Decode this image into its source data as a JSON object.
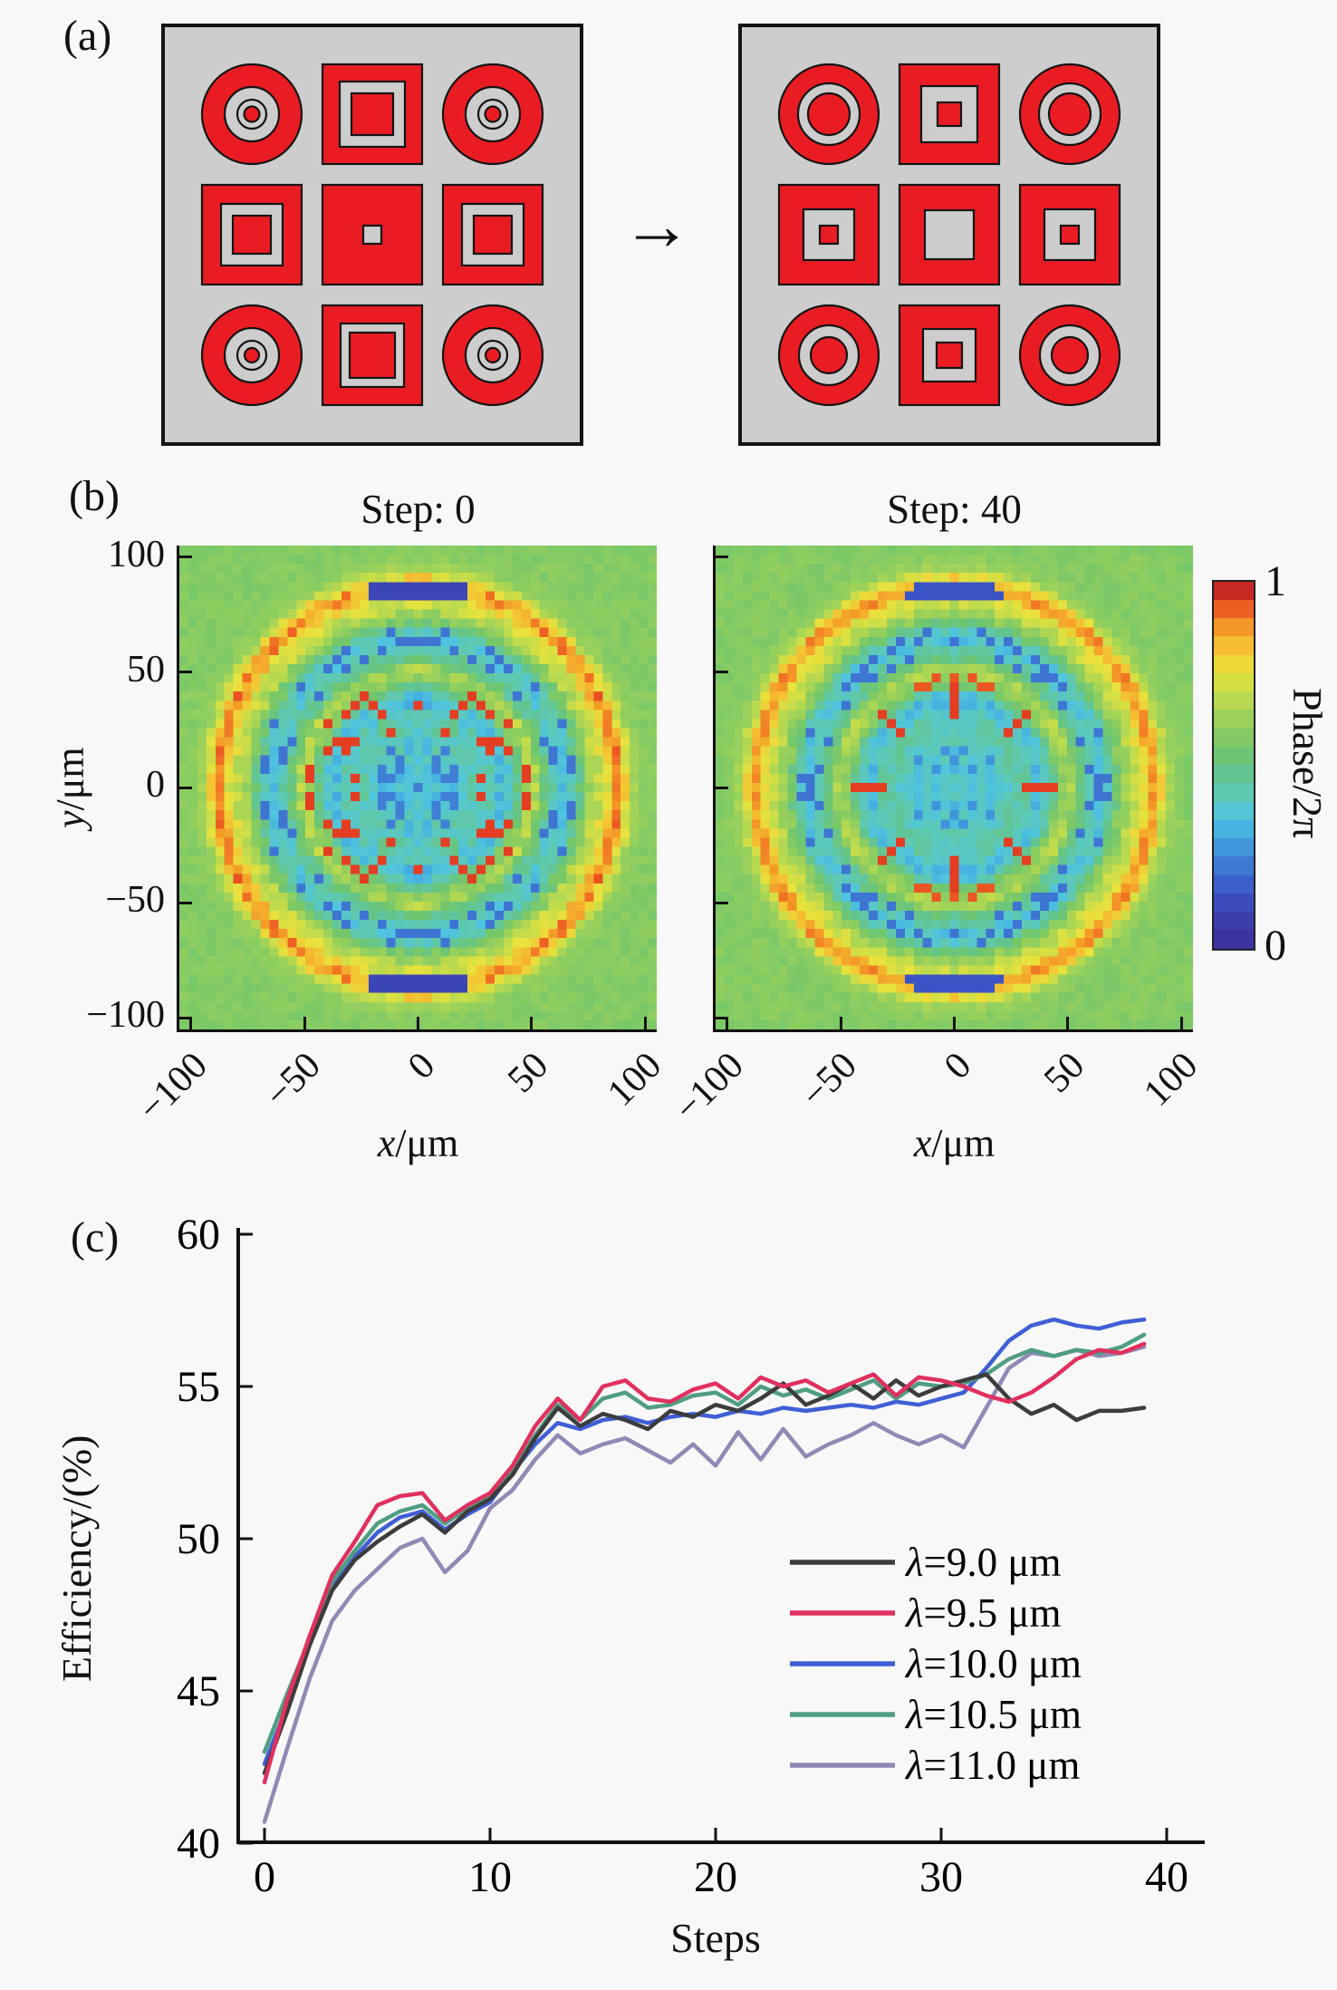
{
  "page": {
    "background": "#f8f8f8"
  },
  "panel_a": {
    "label": "(a)",
    "arrow_icon": "→",
    "colors": {
      "red": "#ea1c23",
      "gray": "#cdcdcd",
      "outline": "#141414",
      "bg": "#cdcdcd",
      "border": "#141414"
    },
    "grids": [
      {
        "name": "before-optimization",
        "cells": [
          {
            "layers": [
              [
                "c",
                110,
                "red"
              ],
              [
                "c",
                60,
                "gray"
              ],
              [
                "c",
                32,
                "gray"
              ],
              [
                "c",
                17,
                "red"
              ]
            ]
          },
          {
            "layers": [
              [
                "s",
                110,
                "red"
              ],
              [
                "s",
                72,
                "gray"
              ],
              [
                "s",
                46,
                "red"
              ]
            ]
          },
          {
            "layers": [
              [
                "c",
                110,
                "red"
              ],
              [
                "c",
                60,
                "gray"
              ],
              [
                "c",
                32,
                "gray"
              ],
              [
                "c",
                17,
                "red"
              ]
            ]
          },
          {
            "layers": [
              [
                "s",
                110,
                "red"
              ],
              [
                "s",
                68,
                "gray"
              ],
              [
                "s",
                42,
                "red"
              ]
            ]
          },
          {
            "layers": [
              [
                "s",
                110,
                "red"
              ],
              [
                "s",
                20,
                "gray"
              ]
            ]
          },
          {
            "layers": [
              [
                "s",
                110,
                "red"
              ],
              [
                "s",
                68,
                "gray"
              ],
              [
                "s",
                42,
                "red"
              ]
            ]
          },
          {
            "layers": [
              [
                "c",
                110,
                "red"
              ],
              [
                "c",
                60,
                "gray"
              ],
              [
                "c",
                32,
                "gray"
              ],
              [
                "c",
                16,
                "red"
              ]
            ]
          },
          {
            "layers": [
              [
                "s",
                110,
                "red"
              ],
              [
                "s",
                70,
                "gray"
              ],
              [
                "s",
                50,
                "red"
              ]
            ]
          },
          {
            "layers": [
              [
                "c",
                110,
                "red"
              ],
              [
                "c",
                60,
                "gray"
              ],
              [
                "c",
                32,
                "gray"
              ],
              [
                "c",
                16,
                "red"
              ]
            ]
          }
        ]
      },
      {
        "name": "after-optimization",
        "cells": [
          {
            "layers": [
              [
                "c",
                110,
                "red"
              ],
              [
                "c",
                68,
                "gray"
              ],
              [
                "c",
                46,
                "red"
              ]
            ]
          },
          {
            "layers": [
              [
                "s",
                110,
                "red"
              ],
              [
                "s",
                62,
                "gray"
              ],
              [
                "s",
                26,
                "red"
              ]
            ]
          },
          {
            "layers": [
              [
                "c",
                110,
                "red"
              ],
              [
                "c",
                68,
                "gray"
              ],
              [
                "c",
                46,
                "red"
              ]
            ]
          },
          {
            "layers": [
              [
                "s",
                110,
                "red"
              ],
              [
                "s",
                56,
                "gray"
              ],
              [
                "s",
                20,
                "red"
              ]
            ]
          },
          {
            "layers": [
              [
                "s",
                110,
                "red"
              ],
              [
                "s",
                54,
                "gray"
              ]
            ]
          },
          {
            "layers": [
              [
                "s",
                110,
                "red"
              ],
              [
                "s",
                56,
                "gray"
              ],
              [
                "s",
                20,
                "red"
              ]
            ]
          },
          {
            "layers": [
              [
                "c",
                110,
                "red"
              ],
              [
                "c",
                66,
                "gray"
              ],
              [
                "c",
                40,
                "red"
              ]
            ]
          },
          {
            "layers": [
              [
                "s",
                110,
                "red"
              ],
              [
                "s",
                58,
                "gray"
              ],
              [
                "s",
                28,
                "red"
              ]
            ]
          },
          {
            "layers": [
              [
                "c",
                110,
                "red"
              ],
              [
                "c",
                66,
                "gray"
              ],
              [
                "c",
                40,
                "red"
              ]
            ]
          }
        ]
      }
    ]
  },
  "panel_b": {
    "label": "(b)",
    "ylabel_var": "y",
    "ylabel_rest": "/μm",
    "xlabel_var": "x",
    "xlabel_rest": "/μm",
    "ytick_labels": [
      "100",
      "50",
      "0",
      "−50",
      "−100"
    ],
    "xtick_labels": [
      "−100",
      "−50",
      "0",
      "50",
      "100"
    ],
    "colorbar_label": "Phase/2π",
    "colorbar_tick_top": "1",
    "colorbar_tick_bottom": "0"
  },
  "panel_c": {
    "label": "(c)",
    "xlabel": "Steps",
    "ylabel": "Efficiency/(%)"
  },
  "chart_data": [
    {
      "type": "heatmap",
      "panel": "b-left",
      "title": "Step: 0",
      "xlabel": "x/μm",
      "ylabel": "y/μm",
      "xlim": [
        -105,
        105
      ],
      "ylim": [
        -105,
        105
      ],
      "xticks": [
        -100,
        -50,
        0,
        50,
        100
      ],
      "yticks": [
        100,
        50,
        0,
        -50,
        -100
      ],
      "colorbar": {
        "label": "Phase/2π",
        "ticks": [
          1,
          0
        ]
      },
      "grid_cells": 53,
      "cell_um": 4.0,
      "radial_profile": [
        [
          0,
          0.37
        ],
        [
          10,
          0.37
        ],
        [
          16,
          0.38
        ],
        [
          22,
          0.4
        ],
        [
          26,
          0.44
        ],
        [
          32,
          0.44
        ],
        [
          36,
          0.36
        ],
        [
          40,
          0.35
        ],
        [
          44,
          0.5
        ],
        [
          48,
          0.62
        ],
        [
          52,
          0.66
        ],
        [
          56,
          0.5
        ],
        [
          60,
          0.45
        ],
        [
          64,
          0.38
        ],
        [
          68,
          0.38
        ],
        [
          72,
          0.52
        ],
        [
          76,
          0.62
        ],
        [
          80,
          0.7
        ],
        [
          84,
          0.74
        ],
        [
          87,
          0.86
        ],
        [
          90,
          0.88
        ],
        [
          93,
          0.74
        ],
        [
          96,
          0.64
        ],
        [
          100,
          0.6
        ],
        [
          106,
          0.58
        ],
        [
          160,
          0.58
        ]
      ],
      "features": {
        "seed": 3,
        "noise": 0.12,
        "red_speckle": {
          "r": [
            26,
            50
          ],
          "p": 0.08,
          "p_side": 0.2
        },
        "blue_dots": {
          "r": [
            58,
            70
          ],
          "p": 0.25,
          "v": 0.22
        },
        "dark_dash": {
          "r": 87,
          "w": 4,
          "sin": 0.965,
          "v": 0.1
        },
        "center_dots": {
          "r": 24,
          "p": 0.12,
          "v": 0.24
        }
      },
      "colormap_stops": [
        [
          0,
          "#3b2d96"
        ],
        [
          0.08,
          "#3d3fae"
        ],
        [
          0.16,
          "#3a57c8"
        ],
        [
          0.24,
          "#3f7fd6"
        ],
        [
          0.3,
          "#41a8e0"
        ],
        [
          0.36,
          "#4fc4de"
        ],
        [
          0.42,
          "#5ec9b4"
        ],
        [
          0.48,
          "#63c48e"
        ],
        [
          0.54,
          "#71c66c"
        ],
        [
          0.62,
          "#97d05c"
        ],
        [
          0.7,
          "#c5dc4a"
        ],
        [
          0.76,
          "#e9e23c"
        ],
        [
          0.82,
          "#f4c132"
        ],
        [
          0.87,
          "#f49b28"
        ],
        [
          0.92,
          "#ef6523"
        ],
        [
          0.96,
          "#e02f22"
        ],
        [
          1,
          "#9c1c24"
        ]
      ]
    },
    {
      "type": "heatmap",
      "panel": "b-right",
      "title": "Step: 40",
      "xlabel": "x/μm",
      "ylabel": "y/μm",
      "xlim": [
        -105,
        105
      ],
      "ylim": [
        -105,
        105
      ],
      "xticks": [
        -100,
        -50,
        0,
        50,
        100
      ],
      "yticks": [
        100,
        50,
        0,
        -50,
        -100
      ],
      "colorbar": {
        "label": "Phase/2π",
        "ticks": [
          1,
          0
        ]
      },
      "grid_cells": 53,
      "cell_um": 4.0,
      "radial_profile": [
        [
          0,
          0.37
        ],
        [
          10,
          0.37
        ],
        [
          16,
          0.38
        ],
        [
          22,
          0.4
        ],
        [
          26,
          0.44
        ],
        [
          32,
          0.44
        ],
        [
          36,
          0.36
        ],
        [
          40,
          0.35
        ],
        [
          44,
          0.5
        ],
        [
          48,
          0.62
        ],
        [
          52,
          0.66
        ],
        [
          56,
          0.5
        ],
        [
          60,
          0.45
        ],
        [
          64,
          0.38
        ],
        [
          68,
          0.38
        ],
        [
          72,
          0.52
        ],
        [
          76,
          0.62
        ],
        [
          80,
          0.7
        ],
        [
          84,
          0.74
        ],
        [
          87,
          0.86
        ],
        [
          90,
          0.88
        ],
        [
          93,
          0.74
        ],
        [
          96,
          0.64
        ],
        [
          100,
          0.6
        ],
        [
          106,
          0.58
        ],
        [
          160,
          0.58
        ]
      ],
      "features": {
        "seed": 11,
        "noise": 0.1,
        "star8": {
          "r": [
            32,
            46
          ],
          "cos": 0.88,
          "v": 0.95
        },
        "chevron": {
          "r": 48,
          "w": 3.5,
          "sin": 0.93,
          "v": 0.93
        },
        "blue_dots": {
          "r": [
            58,
            70
          ],
          "p": 0.22,
          "v": 0.22
        },
        "dark_dash": {
          "r": 86,
          "w": 3.5,
          "sin": 0.965,
          "v": 0.15
        },
        "center_dots": {
          "r": 26,
          "p": 0.12,
          "v": 0.27
        }
      },
      "colormap_stops": [
        [
          0,
          "#3b2d96"
        ],
        [
          0.08,
          "#3d3fae"
        ],
        [
          0.16,
          "#3a57c8"
        ],
        [
          0.24,
          "#3f7fd6"
        ],
        [
          0.3,
          "#41a8e0"
        ],
        [
          0.36,
          "#4fc4de"
        ],
        [
          0.42,
          "#5ec9b4"
        ],
        [
          0.48,
          "#63c48e"
        ],
        [
          0.54,
          "#71c66c"
        ],
        [
          0.62,
          "#97d05c"
        ],
        [
          0.7,
          "#c5dc4a"
        ],
        [
          0.76,
          "#e9e23c"
        ],
        [
          0.82,
          "#f4c132"
        ],
        [
          0.87,
          "#f49b28"
        ],
        [
          0.92,
          "#ef6523"
        ],
        [
          0.96,
          "#e02f22"
        ],
        [
          1,
          "#9c1c24"
        ]
      ]
    },
    {
      "type": "line",
      "panel": "c",
      "xlabel": "Steps",
      "ylabel": "Efficiency/(%)",
      "xlim": [
        0,
        40
      ],
      "ylim": [
        40,
        60
      ],
      "xticks": [
        0,
        10,
        20,
        30,
        40
      ],
      "yticks": [
        40,
        45,
        50,
        55,
        60
      ],
      "legend_position": "inside-lower-right",
      "x": [
        0,
        1,
        2,
        3,
        4,
        5,
        6,
        7,
        8,
        9,
        10,
        11,
        12,
        13,
        14,
        15,
        16,
        17,
        18,
        19,
        20,
        21,
        22,
        23,
        24,
        25,
        26,
        27,
        28,
        29,
        30,
        31,
        32,
        33,
        34,
        35,
        36,
        37,
        38,
        39
      ],
      "series": [
        {
          "name": "λ=9.0 μm",
          "color": "#3c3c3c",
          "values": [
            42.3,
            44.3,
            46.5,
            48.3,
            49.3,
            49.9,
            50.4,
            50.8,
            50.2,
            50.9,
            51.3,
            52.1,
            53.3,
            54.3,
            53.7,
            54.1,
            53.9,
            53.6,
            54.2,
            54.0,
            54.4,
            54.2,
            54.6,
            55.1,
            54.4,
            54.7,
            55.1,
            54.6,
            55.2,
            54.7,
            55.0,
            55.2,
            55.4,
            54.6,
            54.1,
            54.4,
            53.9,
            54.2,
            54.2,
            54.3
          ]
        },
        {
          "name": "λ=9.5 μm",
          "color": "#e0315e",
          "values": [
            42.0,
            44.7,
            46.8,
            48.8,
            49.9,
            51.1,
            51.4,
            51.5,
            50.6,
            51.1,
            51.5,
            52.4,
            53.7,
            54.6,
            53.9,
            55.0,
            55.2,
            54.6,
            54.5,
            54.9,
            55.1,
            54.6,
            55.3,
            55.0,
            55.2,
            54.8,
            55.1,
            55.4,
            54.7,
            55.3,
            55.2,
            55.0,
            54.7,
            54.5,
            54.8,
            55.3,
            55.9,
            56.2,
            56.1,
            56.4
          ]
        },
        {
          "name": "λ=10.0 μm",
          "color": "#3f5fd6",
          "values": [
            42.6,
            44.5,
            46.6,
            48.5,
            49.4,
            50.2,
            50.7,
            50.9,
            50.3,
            50.8,
            51.2,
            52.2,
            53.1,
            53.8,
            53.6,
            53.9,
            54.0,
            53.8,
            54.0,
            54.1,
            54.0,
            54.2,
            54.1,
            54.3,
            54.2,
            54.3,
            54.4,
            54.3,
            54.5,
            54.4,
            54.6,
            54.8,
            55.6,
            56.5,
            57.0,
            57.2,
            57.0,
            56.9,
            57.1,
            57.2
          ]
        },
        {
          "name": "λ=10.5 μm",
          "color": "#4f9e82",
          "values": [
            43.0,
            44.9,
            46.7,
            48.6,
            49.6,
            50.5,
            50.9,
            51.1,
            50.5,
            51.0,
            51.4,
            52.2,
            53.4,
            54.4,
            53.9,
            54.6,
            54.8,
            54.3,
            54.4,
            54.7,
            54.8,
            54.4,
            55.0,
            54.7,
            54.9,
            54.6,
            54.9,
            55.2,
            54.6,
            55.1,
            55.0,
            55.1,
            55.4,
            55.9,
            56.2,
            56.0,
            56.2,
            56.1,
            56.3,
            56.7
          ]
        },
        {
          "name": "λ=11.0 μm",
          "color": "#8f8ab5",
          "values": [
            40.7,
            43.1,
            45.4,
            47.3,
            48.3,
            49.0,
            49.7,
            50.0,
            48.9,
            49.6,
            51.0,
            51.6,
            52.6,
            53.4,
            52.8,
            53.1,
            53.3,
            52.9,
            52.5,
            53.1,
            52.4,
            53.5,
            52.6,
            53.6,
            52.7,
            53.1,
            53.4,
            53.8,
            53.4,
            53.1,
            53.4,
            53.0,
            54.3,
            55.6,
            56.1,
            56.0,
            56.2,
            56.0,
            56.1,
            56.3
          ]
        }
      ]
    }
  ]
}
